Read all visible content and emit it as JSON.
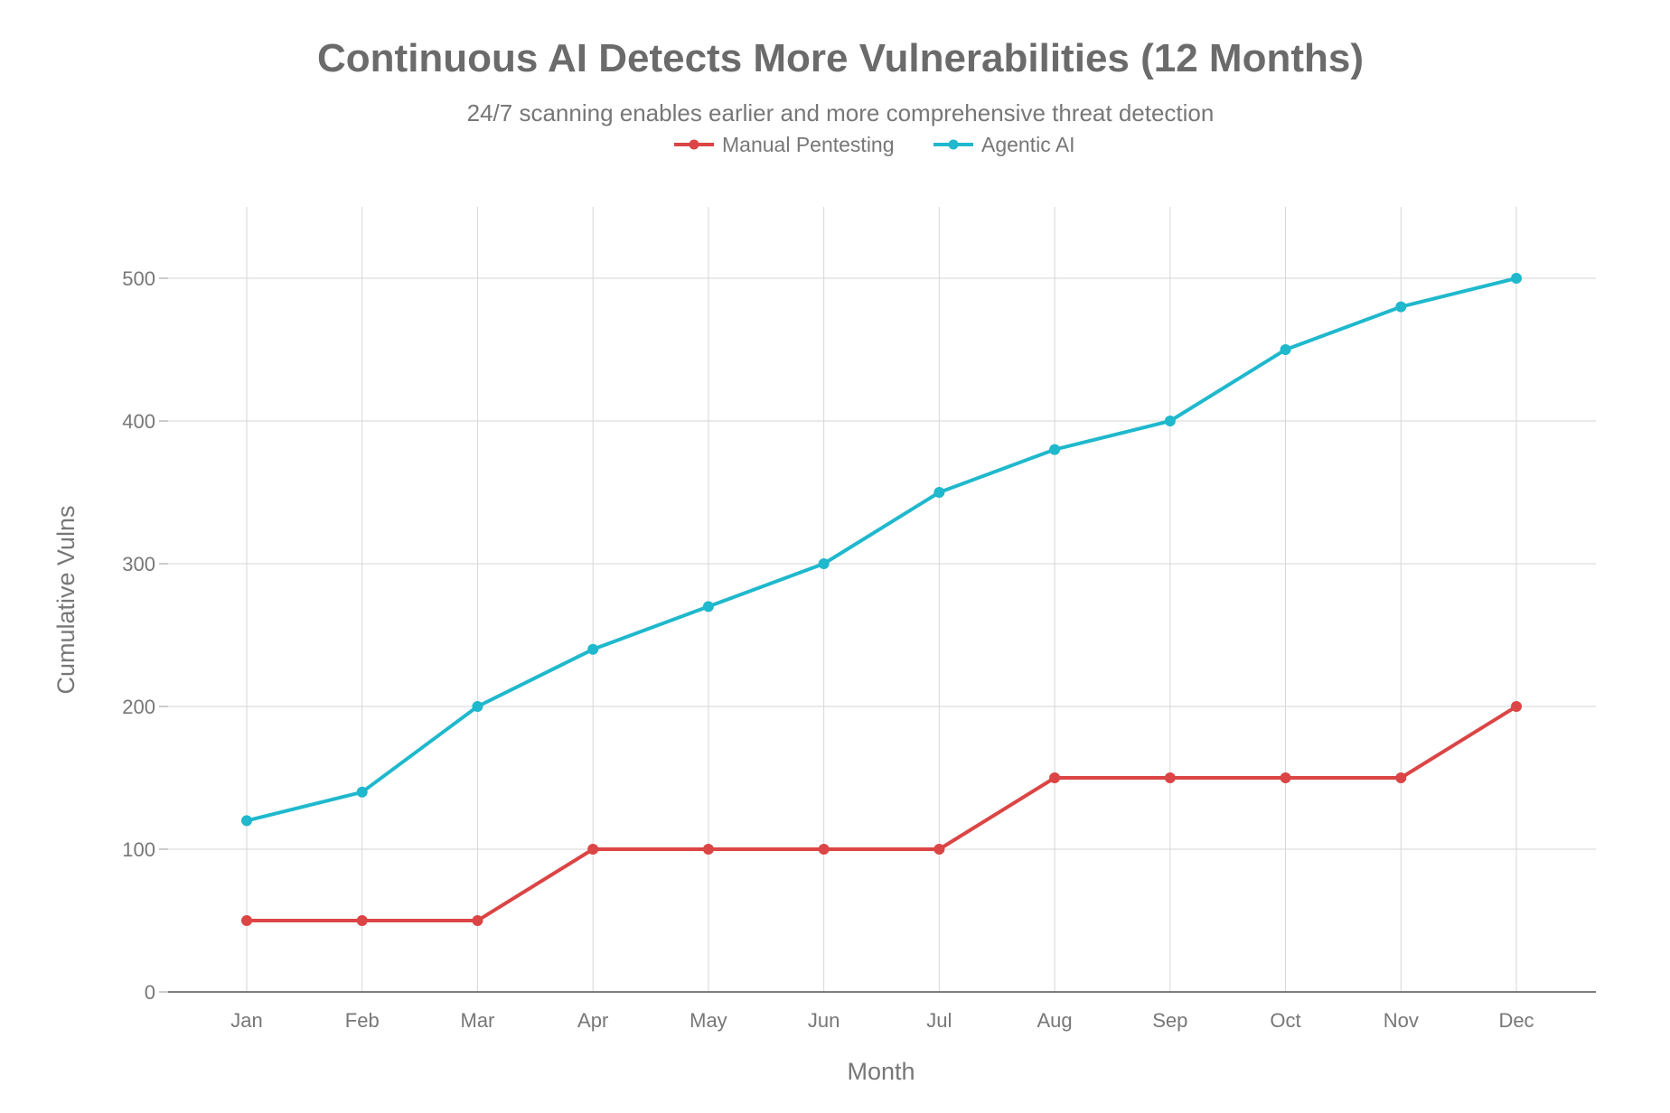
{
  "chart_data": {
    "type": "line",
    "title": "Continuous AI Detects More Vulnerabilities (12 Months)",
    "subtitle": "24/7 scanning enables earlier and more comprehensive threat detection",
    "xlabel": "Month",
    "ylabel": "Cumulative Vulns",
    "categories": [
      "Jan",
      "Feb",
      "Mar",
      "Apr",
      "May",
      "Jun",
      "Jul",
      "Aug",
      "Sep",
      "Oct",
      "Nov",
      "Dec"
    ],
    "yticks": [
      0,
      100,
      200,
      300,
      400,
      500
    ],
    "ylim": [
      0,
      550
    ],
    "grid": true,
    "legend_position": "top-center",
    "series": [
      {
        "name": "Manual Pentesting",
        "color": "#DB4545",
        "values": [
          50,
          50,
          50,
          100,
          100,
          100,
          100,
          150,
          150,
          150,
          150,
          200
        ]
      },
      {
        "name": "Agentic AI",
        "color": "#1FB8CD",
        "values": [
          120,
          140,
          200,
          240,
          270,
          300,
          350,
          380,
          400,
          450,
          480,
          500
        ]
      }
    ]
  }
}
